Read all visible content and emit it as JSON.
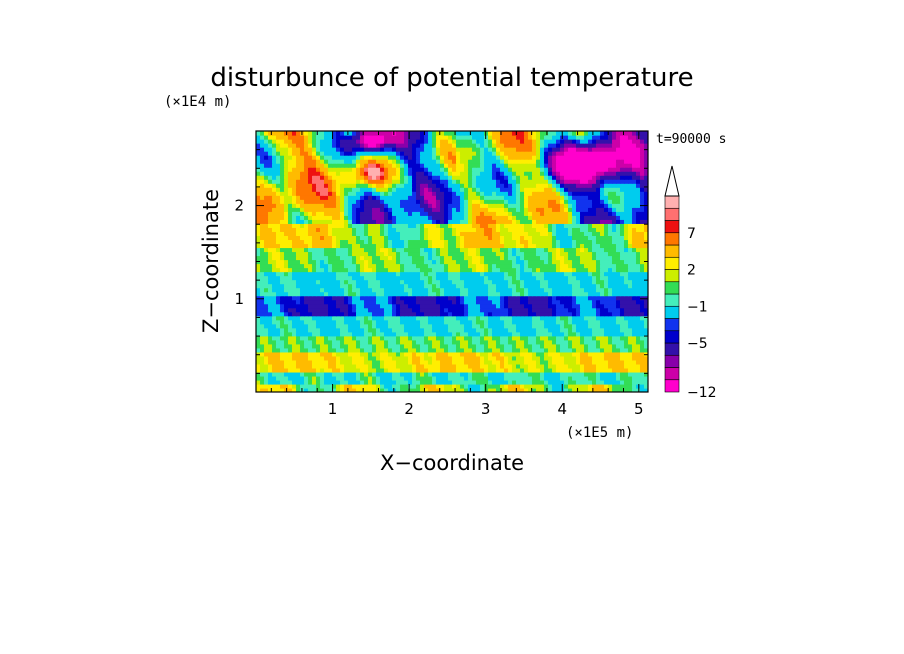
{
  "chart_data": {
    "type": "heatmap",
    "title": "disturbunce of potential temperature",
    "time_label": "t=90000 s",
    "xlabel": "X−coordinate",
    "ylabel": "Z−coordinate",
    "x_unit": "(×1E5 m)",
    "y_unit": "(×1E4 m)",
    "xlim": [
      0,
      5.12
    ],
    "ylim": [
      0,
      2.8
    ],
    "xticks": [
      {
        "value": 1,
        "label": "1"
      },
      {
        "value": 2,
        "label": "2"
      },
      {
        "value": 3,
        "label": "3"
      },
      {
        "value": 4,
        "label": "4"
      },
      {
        "value": 5,
        "label": "5"
      }
    ],
    "yticks": [
      {
        "value": 1,
        "label": "1"
      },
      {
        "value": 2,
        "label": "2"
      }
    ],
    "colorbar": {
      "levels": [
        -12,
        -10,
        -8,
        -7,
        -5,
        -4,
        -3,
        -1,
        0,
        1,
        2,
        3,
        5,
        7,
        8,
        9
      ],
      "colors": [
        "#ff00cc",
        "#cc00a8",
        "#8800aa",
        "#3311aa",
        "#0000cc",
        "#1133ee",
        "#00ccee",
        "#44eebb",
        "#33dd55",
        "#ccee00",
        "#ffee00",
        "#ffbb00",
        "#ff7700",
        "#ee1111",
        "#ff7070",
        "#ffb0b0"
      ],
      "tick_labels": [
        {
          "level": -12,
          "label": "−12"
        },
        {
          "level": -5,
          "label": "−5"
        },
        {
          "level": -1,
          "label": "−1"
        },
        {
          "level": 2,
          "label": "2"
        },
        {
          "level": 7,
          "label": "7"
        }
      ],
      "extend": "max"
    }
  }
}
